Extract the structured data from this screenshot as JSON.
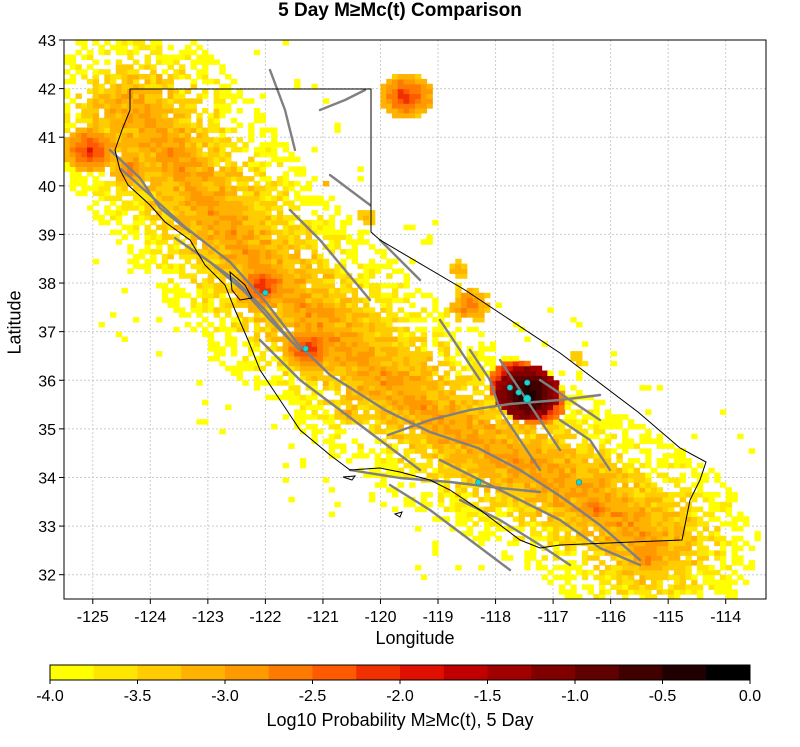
{
  "title": "5 Day M≥Mc(t) Comparison",
  "ylabel": "Latitude",
  "xlabel": "Longitude",
  "colorbar_label": "Log10 Probability M≥Mc(t), 5 Day",
  "colors": {
    "colormap": [
      "#ffff00",
      "#ffe600",
      "#ffcc00",
      "#ffb300",
      "#ff9900",
      "#ff7a00",
      "#ff5a00",
      "#f03000",
      "#e01000",
      "#c00000",
      "#a00000",
      "#800000",
      "#600000",
      "#400000",
      "#200000",
      "#000000"
    ],
    "faults": "#808080",
    "border": "#000000",
    "events": "#19d6d6",
    "grid": "#cccccc"
  },
  "chart_data": {
    "type": "heatmap",
    "xlim": [
      -125.5,
      -113.3
    ],
    "ylim": [
      31.5,
      43
    ],
    "xticks": [
      -125,
      -124,
      -123,
      -122,
      -121,
      -120,
      -119,
      -118,
      -117,
      -116,
      -115,
      -114
    ],
    "yticks": [
      32,
      33,
      34,
      35,
      36,
      37,
      38,
      39,
      40,
      41,
      42,
      43
    ],
    "grid": true,
    "colorbar": {
      "min": -4.0,
      "max": 0.0,
      "ticks": [
        -4.0,
        -3.5,
        -3.0,
        -2.5,
        -2.0,
        -1.5,
        -1.0,
        -0.5,
        0.0
      ],
      "tick_labels": [
        "-4.0",
        "-3.5",
        "-3.0",
        "-2.5",
        "-2.0",
        "-1.5",
        "-1.0",
        "-0.5",
        "0.0"
      ]
    },
    "hotspots": [
      {
        "lon": -117.5,
        "lat": 35.7,
        "value": -0.2
      },
      {
        "lon": -117.7,
        "lat": 35.9,
        "value": -1.2
      },
      {
        "lon": -117.3,
        "lat": 35.5,
        "value": -1.5
      },
      {
        "lon": -121.3,
        "lat": 36.6,
        "value": -2.0
      },
      {
        "lon": -125.1,
        "lat": 40.7,
        "value": -2.0
      },
      {
        "lon": -124.4,
        "lat": 40.3,
        "value": -2.5
      },
      {
        "lon": -122.1,
        "lat": 37.9,
        "value": -2.0
      },
      {
        "lon": -120.3,
        "lat": 39.3,
        "value": -3.0
      },
      {
        "lon": -118.5,
        "lat": 37.5,
        "value": -2.5
      },
      {
        "lon": -119.6,
        "lat": 41.8,
        "value": -2.0
      },
      {
        "lon": -116.3,
        "lat": 33.3,
        "value": -2.5
      },
      {
        "lon": -115.4,
        "lat": 32.3,
        "value": -2.5
      },
      {
        "lon": -118.1,
        "lat": 34.0,
        "value": -3.0
      },
      {
        "lon": -117.4,
        "lat": 34.3,
        "value": -2.8
      },
      {
        "lon": -120.6,
        "lat": 35.3,
        "value": -3.0
      },
      {
        "lon": -118.7,
        "lat": 38.2,
        "value": -3.0
      },
      {
        "lon": -121.0,
        "lat": 40.0,
        "value": -3.2
      },
      {
        "lon": -116.6,
        "lat": 36.4,
        "value": -3.2
      }
    ],
    "events": [
      {
        "lon": -117.45,
        "lat": 35.62
      },
      {
        "lon": -117.6,
        "lat": 35.75
      },
      {
        "lon": -117.75,
        "lat": 35.85
      },
      {
        "lon": -117.45,
        "lat": 35.95
      },
      {
        "lon": -116.55,
        "lat": 33.9
      },
      {
        "lon": -121.3,
        "lat": 36.65
      },
      {
        "lon": -118.3,
        "lat": 33.9
      },
      {
        "lon": -122.0,
        "lat": 37.8
      }
    ]
  }
}
